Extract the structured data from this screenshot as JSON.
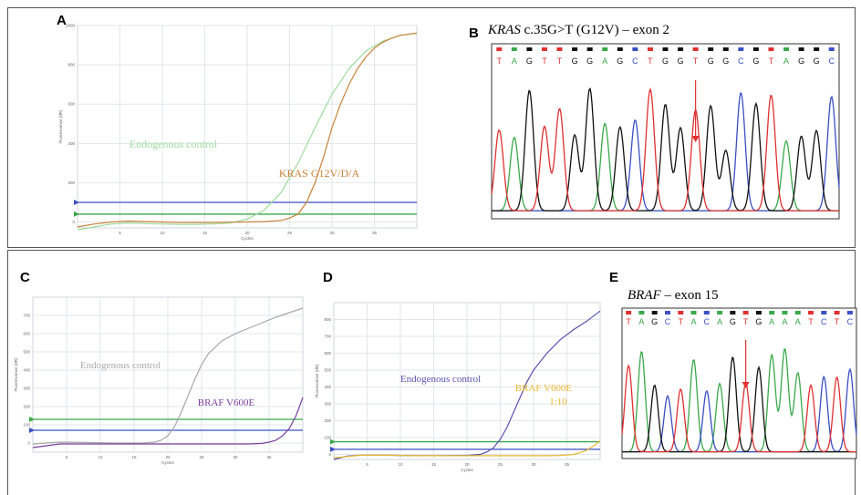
{
  "panels": {
    "A": "A",
    "B": "B",
    "C": "C",
    "D": "D",
    "E": "E"
  },
  "chart_data": [
    {
      "id": "A",
      "type": "line",
      "xlabel": "Cycles",
      "ylabel": "Fluorescence (dR)",
      "xlim": [
        0,
        40
      ],
      "ylim": [
        -30,
        1000
      ],
      "xticks": [
        5,
        10,
        15,
        20,
        25,
        30,
        35
      ],
      "yticks": [
        0,
        200,
        400,
        600,
        800,
        1000
      ],
      "grid": true,
      "series": [
        {
          "name": "Endogenous control",
          "color": "#9edb9e",
          "points": [
            [
              0,
              -40
            ],
            [
              2,
              -25
            ],
            [
              4,
              -10
            ],
            [
              6,
              -5
            ],
            [
              8,
              -8
            ],
            [
              10,
              -10
            ],
            [
              12,
              -12
            ],
            [
              14,
              -12
            ],
            [
              16,
              -10
            ],
            [
              18,
              -5
            ],
            [
              20,
              15
            ],
            [
              22,
              60
            ],
            [
              24,
              150
            ],
            [
              26,
              300
            ],
            [
              28,
              480
            ],
            [
              30,
              650
            ],
            [
              32,
              780
            ],
            [
              34,
              870
            ],
            [
              36,
              920
            ],
            [
              38,
              950
            ],
            [
              40,
              960
            ]
          ]
        },
        {
          "name": "KRAS G12V/D/A",
          "color": "#c8823a",
          "points": [
            [
              0,
              -25
            ],
            [
              2,
              -10
            ],
            [
              4,
              0
            ],
            [
              6,
              5
            ],
            [
              8,
              2
            ],
            [
              10,
              0
            ],
            [
              12,
              -2
            ],
            [
              14,
              -2
            ],
            [
              16,
              -2
            ],
            [
              18,
              -1
            ],
            [
              20,
              0
            ],
            [
              22,
              2
            ],
            [
              24,
              8
            ],
            [
              25,
              20
            ],
            [
              26,
              40
            ],
            [
              27,
              100
            ],
            [
              28,
              200
            ],
            [
              29,
              330
            ],
            [
              30,
              480
            ],
            [
              31,
              600
            ],
            [
              32,
              700
            ],
            [
              33,
              780
            ],
            [
              34,
              840
            ],
            [
              35,
              885
            ],
            [
              36,
              915
            ],
            [
              37,
              935
            ],
            [
              38,
              950
            ],
            [
              40,
              962
            ]
          ]
        }
      ],
      "thresholds": [
        {
          "y": 100,
          "color": "#3a4fc4"
        },
        {
          "y": 40,
          "color": "#3aa84a"
        }
      ],
      "annotations": [
        {
          "text": "Endogenous control",
          "color": "#9edb9e"
        },
        {
          "text": "KRAS G12V/D/A",
          "color": "#c8823a"
        }
      ]
    },
    {
      "id": "C",
      "type": "line",
      "xlabel": "Cycles",
      "ylabel": "Fluorescence (dR)",
      "xlim": [
        0,
        40
      ],
      "ylim": [
        -50,
        800
      ],
      "xticks": [
        5,
        10,
        15,
        20,
        25,
        30,
        35
      ],
      "yticks": [
        0,
        100,
        200,
        300,
        400,
        500,
        600,
        700
      ],
      "grid": true,
      "series": [
        {
          "name": "Endogenous control",
          "color": "#a8a8a8",
          "points": [
            [
              0,
              -5
            ],
            [
              4,
              5
            ],
            [
              8,
              3
            ],
            [
              12,
              0
            ],
            [
              16,
              0
            ],
            [
              18,
              5
            ],
            [
              19,
              15
            ],
            [
              20,
              40
            ],
            [
              21,
              90
            ],
            [
              22,
              170
            ],
            [
              23,
              260
            ],
            [
              24,
              350
            ],
            [
              25,
              430
            ],
            [
              26,
              490
            ],
            [
              28,
              560
            ],
            [
              30,
              600
            ],
            [
              32,
              630
            ],
            [
              34,
              660
            ],
            [
              36,
              690
            ],
            [
              38,
              715
            ],
            [
              40,
              740
            ]
          ]
        },
        {
          "name": "BRAF V600E",
          "color": "#7b3fa0",
          "points": [
            [
              0,
              -25
            ],
            [
              4,
              -5
            ],
            [
              8,
              -5
            ],
            [
              12,
              -5
            ],
            [
              16,
              -5
            ],
            [
              20,
              -5
            ],
            [
              24,
              -5
            ],
            [
              28,
              -5
            ],
            [
              32,
              -5
            ],
            [
              34,
              -2
            ],
            [
              35,
              5
            ],
            [
              36,
              15
            ],
            [
              37,
              40
            ],
            [
              38,
              80
            ],
            [
              39,
              150
            ],
            [
              40,
              250
            ]
          ]
        }
      ],
      "thresholds": [
        {
          "y": 130,
          "color": "#3aa84a"
        },
        {
          "y": 70,
          "color": "#3a4fc4"
        }
      ],
      "annotations": [
        {
          "text": "Endogenous control",
          "color": "#a8a8a8"
        },
        {
          "text": "BRAF V600E",
          "color": "#7b3fa0"
        }
      ]
    },
    {
      "id": "D",
      "type": "line",
      "xlabel": "Cycles",
      "ylabel": "Fluorescence (dR)",
      "xlim": [
        0,
        40
      ],
      "ylim": [
        -30,
        900
      ],
      "xticks": [
        5,
        10,
        15,
        20,
        25,
        30,
        35
      ],
      "yticks": [
        0,
        100,
        200,
        300,
        400,
        500,
        600,
        700,
        800
      ],
      "grid": true,
      "series": [
        {
          "name": "Endogenous control",
          "color": "#5a4fb0",
          "points": [
            [
              0,
              -30
            ],
            [
              2,
              -10
            ],
            [
              4,
              -5
            ],
            [
              8,
              -5
            ],
            [
              12,
              -8
            ],
            [
              16,
              -8
            ],
            [
              20,
              -6
            ],
            [
              22,
              0
            ],
            [
              23,
              15
            ],
            [
              24,
              40
            ],
            [
              25,
              90
            ],
            [
              26,
              160
            ],
            [
              27,
              250
            ],
            [
              28,
              340
            ],
            [
              29,
              430
            ],
            [
              30,
              500
            ],
            [
              32,
              600
            ],
            [
              34,
              680
            ],
            [
              36,
              740
            ],
            [
              38,
              790
            ],
            [
              40,
              850
            ]
          ]
        },
        {
          "name": "BRAF V600E 1:10",
          "color": "#e8b830",
          "points": [
            [
              0,
              -20
            ],
            [
              4,
              -5
            ],
            [
              8,
              -5
            ],
            [
              12,
              -8
            ],
            [
              16,
              -8
            ],
            [
              20,
              -8
            ],
            [
              24,
              -8
            ],
            [
              28,
              -8
            ],
            [
              32,
              -8
            ],
            [
              34,
              -6
            ],
            [
              36,
              0
            ],
            [
              37,
              10
            ],
            [
              38,
              25
            ],
            [
              39,
              50
            ],
            [
              40,
              80
            ]
          ]
        }
      ],
      "thresholds": [
        {
          "y": 75,
          "color": "#3aa84a"
        },
        {
          "y": 30,
          "color": "#3a4fc4"
        }
      ],
      "annotations": [
        {
          "text": "Endogenous control",
          "color": "#5a4fb0"
        },
        {
          "text": "BRAF V600E",
          "color": "#e8b830"
        },
        {
          "text": "1:10",
          "color": "#e8b830"
        }
      ]
    }
  ],
  "sequencing": {
    "B": {
      "title_gene": "KRAS",
      "title_rest": " c.35G>T  (G12V) – exon 2",
      "bases": [
        "T",
        "A",
        "G",
        "T",
        "T",
        "G",
        "G",
        "A",
        "G",
        "C",
        "T",
        "G",
        "G",
        "T",
        "G",
        "G",
        "C",
        "G",
        "T",
        "A",
        "G",
        "G",
        "C"
      ]
    },
    "E": {
      "title_gene": "BRAF",
      "title_rest": "  – exon 15",
      "bases": [
        "T",
        "A",
        "G",
        "C",
        "T",
        "A",
        "C",
        "A",
        "G",
        "T",
        "G",
        "A",
        "A",
        "A",
        "T",
        "C",
        "T",
        "C"
      ]
    }
  },
  "colors": {
    "A": "#3aa84a",
    "C": "#3a4fc4",
    "G": "#111111",
    "T": "#e03030",
    "arrow": "#e03030"
  }
}
